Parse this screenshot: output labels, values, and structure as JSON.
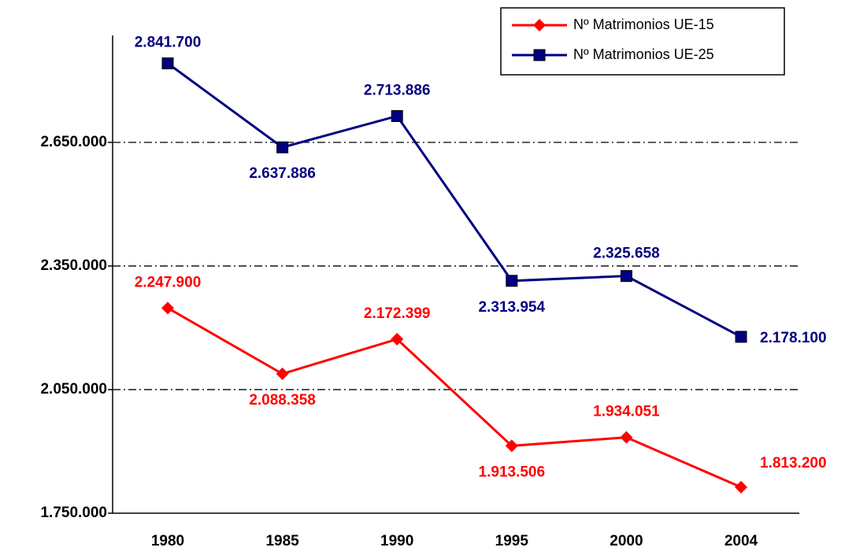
{
  "chart_data": {
    "type": "line",
    "categories": [
      "1980",
      "1985",
      "1990",
      "1995",
      "2000",
      "2004"
    ],
    "series": [
      {
        "name": "Nº Matrimonios UE-15",
        "color": "#ff0000",
        "marker": "diamond",
        "values": [
          2247900,
          2088358,
          2172399,
          1913506,
          1934051,
          1813200
        ],
        "value_labels": [
          "2.247.900",
          "2.088.358",
          "2.172.399",
          "1.913.506",
          "1.934.051",
          "1.813.200"
        ]
      },
      {
        "name": "Nº Matrimonios UE-25",
        "color": "#000080",
        "marker": "square",
        "values": [
          2841700,
          2637886,
          2713886,
          2313954,
          2325658,
          2178100
        ],
        "value_labels": [
          "2.841.700",
          "2.637.886",
          "2.713.886",
          "2.313.954",
          "2.325.658",
          "2.178.100"
        ]
      }
    ],
    "ylim": [
      1750000,
      2900000
    ],
    "yticks": [
      {
        "value": 1750000,
        "label": "1.750.000"
      },
      {
        "value": 2050000,
        "label": "2.050.000"
      },
      {
        "value": 2350000,
        "label": "2.350.000"
      },
      {
        "value": 2650000,
        "label": "2.650.000"
      }
    ],
    "grid": true,
    "legend": "top-right"
  }
}
